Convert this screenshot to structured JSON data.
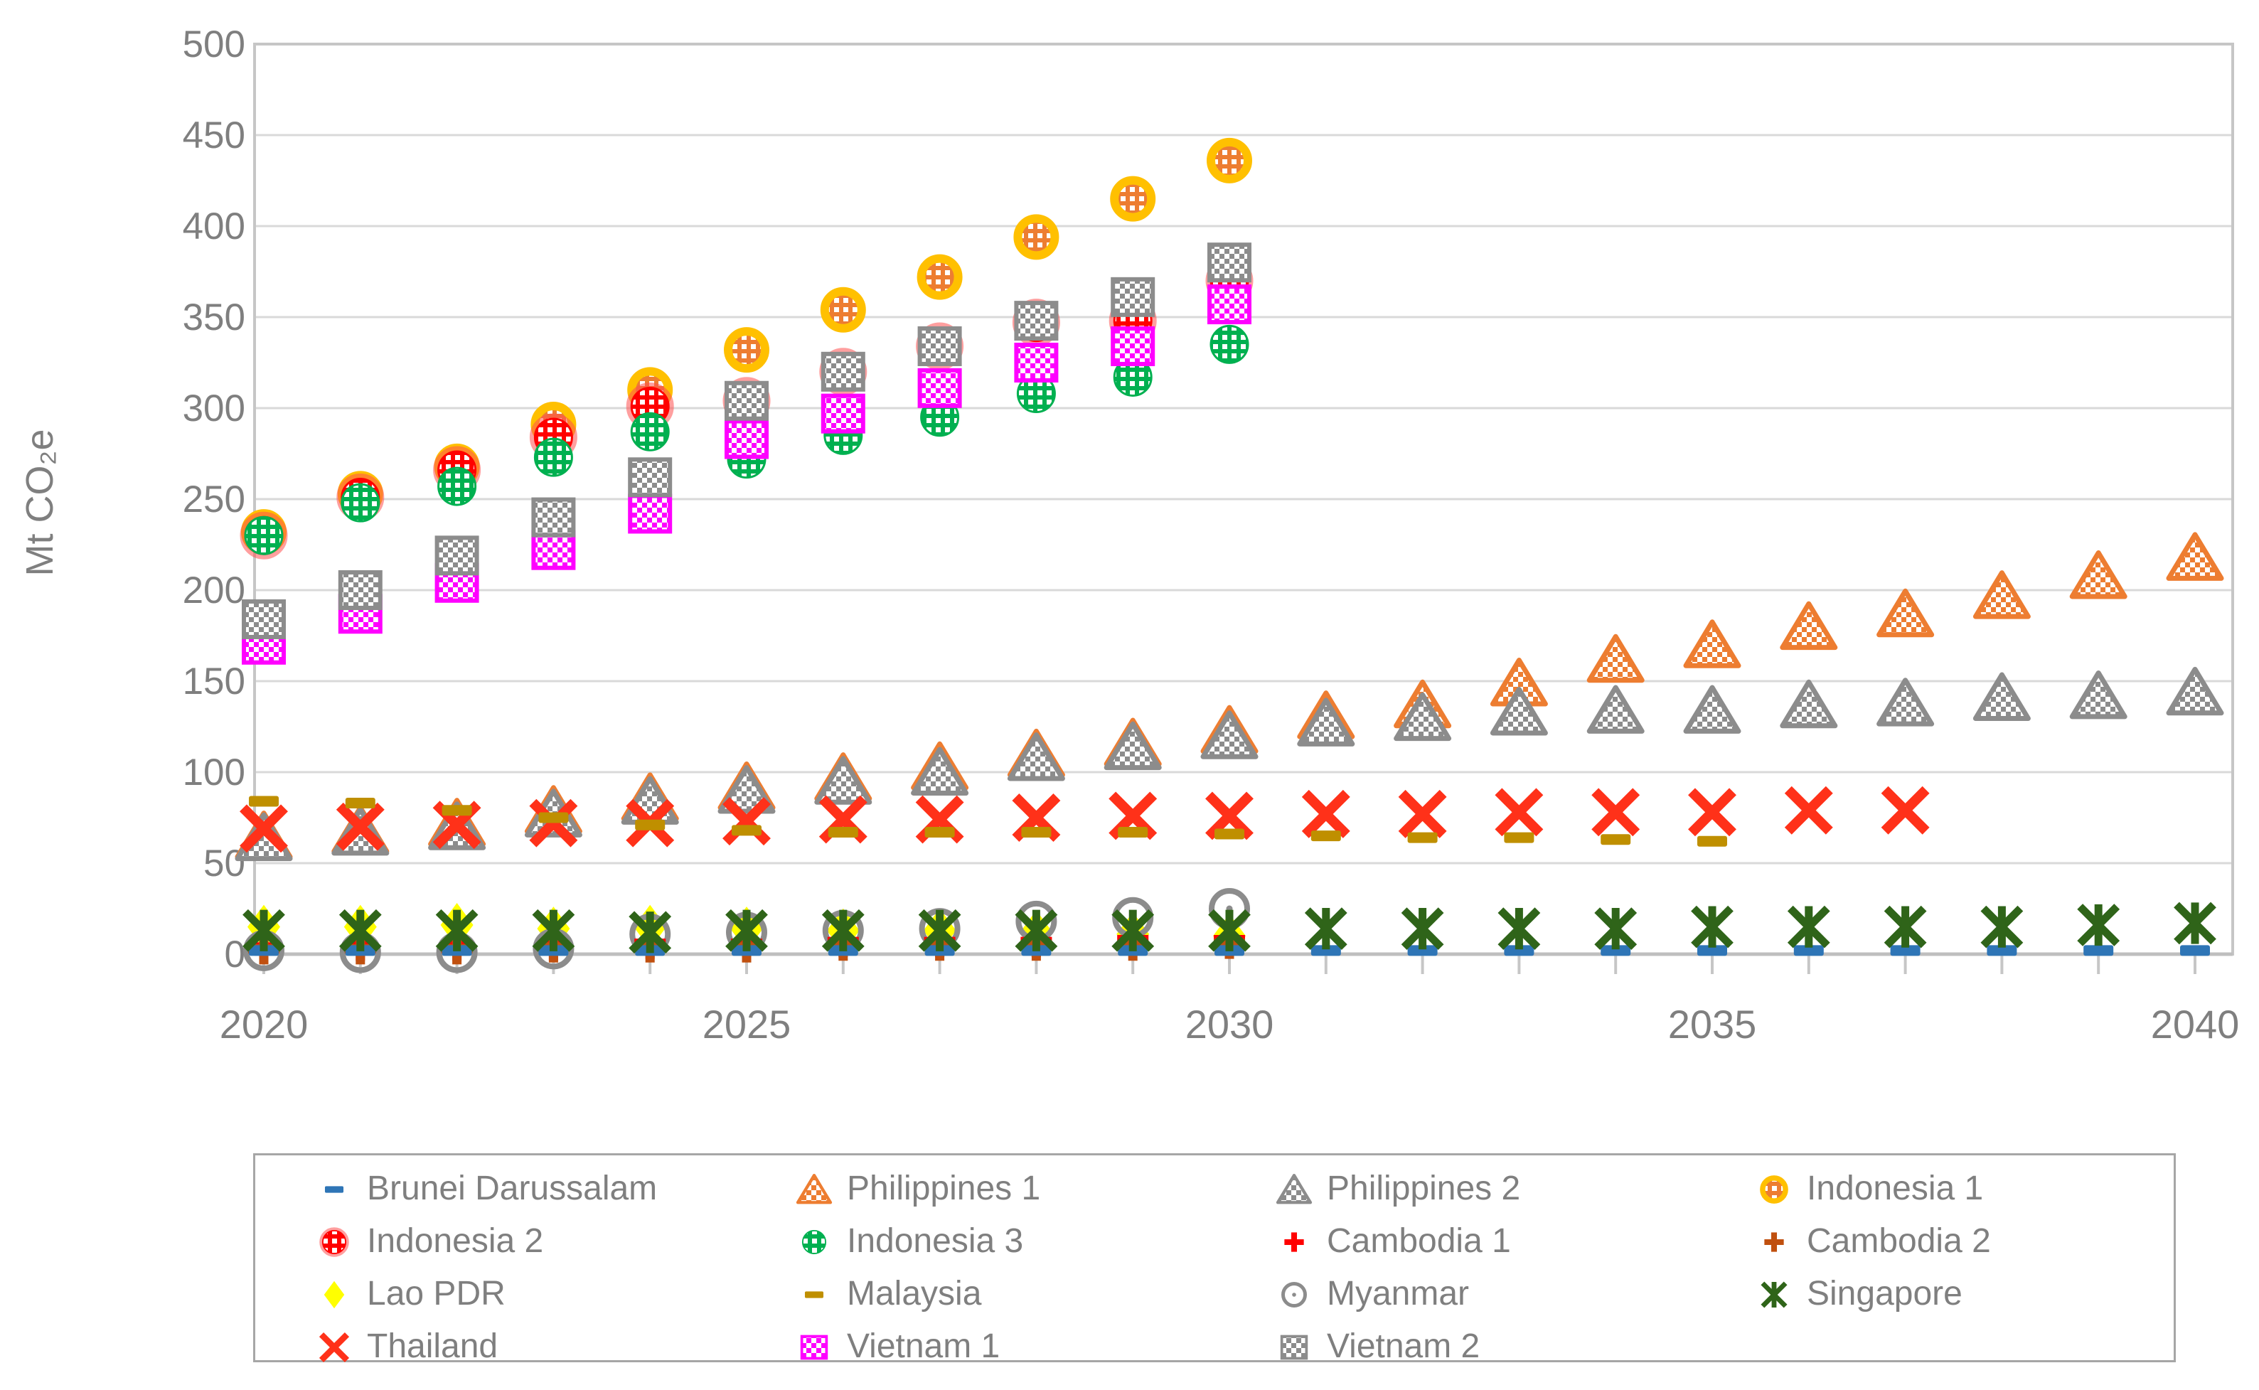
{
  "page": {
    "background": "#FFFFFF"
  },
  "chart_data": {
    "type": "scatter",
    "title": "",
    "xlabel": "",
    "ylabel": "Mt CO₂e",
    "ylim": [
      0,
      500
    ],
    "ytick_step": 50,
    "grid": "horizontal",
    "legend_position": "bottom-box",
    "x": [
      2020,
      2021,
      2022,
      2023,
      2024,
      2025,
      2026,
      2027,
      2028,
      2029,
      2030,
      2031,
      2032,
      2033,
      2034,
      2035,
      2036,
      2037,
      2038,
      2039,
      2040
    ],
    "xtick_labels": [
      "2020",
      "2025",
      "2030",
      "2035",
      "2040"
    ],
    "series": [
      {
        "name": "Brunei Darussalam",
        "marker": "dash",
        "color": "#2E75B6",
        "values": [
          2,
          2,
          2,
          2,
          2,
          2,
          2,
          2,
          2,
          2,
          2,
          2,
          2,
          2,
          2,
          2,
          2,
          2,
          2,
          2,
          2
        ]
      },
      {
        "name": "Philippines 1",
        "marker": "triangle",
        "color": "#ED7D31",
        "pattern": "orange",
        "values": [
          65,
          68,
          72,
          79,
          86,
          92,
          97,
          103,
          110,
          116,
          123,
          131,
          137,
          149,
          162,
          170,
          180,
          187,
          197,
          208,
          218
        ]
      },
      {
        "name": "Philippines 2",
        "marker": "triangle",
        "color": "#8C8C8C",
        "pattern": "gray",
        "values": [
          64,
          67,
          70,
          77,
          84,
          90,
          95,
          100,
          108,
          114,
          120,
          127,
          130,
          133,
          134,
          134,
          137,
          138,
          141,
          142,
          144
        ]
      },
      {
        "name": "Indonesia 1",
        "marker": "circle-dot",
        "color": "#ED7D31",
        "pattern": "orange",
        "ring": "#FFC000",
        "values": [
          232,
          253,
          268,
          291,
          310,
          332,
          354,
          372,
          394,
          415,
          436,
          null,
          null,
          null,
          null,
          null,
          null,
          null,
          null,
          null,
          null
        ]
      },
      {
        "name": "Indonesia 2",
        "marker": "circle-dot",
        "color": "#FF0000",
        "pattern": "red",
        "glow": "#FF5050",
        "values": [
          230,
          251,
          266,
          284,
          301,
          304,
          320,
          334,
          347,
          348,
          370,
          null,
          null,
          null,
          null,
          null,
          null,
          null,
          null,
          null,
          null
        ]
      },
      {
        "name": "Indonesia 3",
        "marker": "circle-dot",
        "color": "#00B050",
        "pattern": "green",
        "values": [
          230,
          248,
          257,
          273,
          287,
          272,
          285,
          295,
          308,
          317,
          335,
          null,
          null,
          null,
          null,
          null,
          null,
          null,
          null,
          null,
          null
        ]
      },
      {
        "name": "Cambodia 1",
        "marker": "plus",
        "color": "#FF0000",
        "values": [
          4,
          5,
          5,
          5,
          6,
          6,
          7,
          7,
          7,
          8,
          8,
          null,
          null,
          null,
          null,
          null,
          null,
          null,
          null,
          null,
          null
        ]
      },
      {
        "name": "Cambodia 2",
        "marker": "plus",
        "color": "#C0500F",
        "values": [
          3,
          3,
          3,
          4,
          4,
          4,
          5,
          5,
          5,
          5,
          6,
          null,
          null,
          null,
          null,
          null,
          null,
          null,
          null,
          null,
          null
        ]
      },
      {
        "name": "Lao PDR",
        "marker": "diamond",
        "color": "#FFFF00",
        "values": [
          15,
          15,
          16,
          14,
          15,
          14,
          13,
          13,
          12,
          11,
          10,
          null,
          null,
          null,
          null,
          null,
          null,
          null,
          null,
          null,
          null
        ]
      },
      {
        "name": "Malaysia",
        "marker": "dash",
        "color": "#BF8F00",
        "values": [
          84,
          83,
          79,
          75,
          71,
          68,
          67,
          67,
          67,
          67,
          66,
          65,
          64,
          64,
          63,
          62,
          null,
          null,
          null,
          null,
          null
        ]
      },
      {
        "name": "Myanmar",
        "marker": "circle-open",
        "color": "#8C8C8C",
        "values": [
          2,
          1,
          1,
          3,
          11,
          12,
          13,
          14,
          18,
          20,
          25,
          null,
          null,
          null,
          null,
          null,
          null,
          null,
          null,
          null,
          null
        ]
      },
      {
        "name": "Singapore",
        "marker": "asterisk",
        "color": "#2F6419",
        "values": [
          13,
          13,
          13,
          13,
          12,
          13,
          13,
          13,
          13,
          13,
          13,
          14,
          14,
          14,
          14,
          15,
          15,
          15,
          15,
          16,
          17
        ]
      },
      {
        "name": "Thailand",
        "marker": "x",
        "color": "#FF3119",
        "values": [
          69,
          70,
          71,
          72,
          72,
          73,
          74,
          74,
          75,
          76,
          76,
          77,
          77,
          78,
          78,
          78,
          79,
          79,
          null,
          null,
          null
        ]
      },
      {
        "name": "Vietnam 1",
        "marker": "square",
        "color": "#FF00FF",
        "pattern": "magenta",
        "values": [
          170,
          187,
          204,
          222,
          242,
          283,
          297,
          311,
          325,
          334,
          357,
          null,
          null,
          null,
          null,
          null,
          null,
          null,
          null,
          null,
          null
        ]
      },
      {
        "name": "Vietnam 2",
        "marker": "square",
        "color": "#8C8C8C",
        "pattern": "gray",
        "values": [
          184,
          200,
          219,
          240,
          262,
          304,
          320,
          334,
          348,
          361,
          380,
          null,
          null,
          null,
          null,
          null,
          null,
          null,
          null,
          null,
          null
        ]
      }
    ],
    "draw_order": [
      "Philippines 1",
      "Philippines 2",
      "Thailand",
      "Malaysia",
      "Indonesia 1",
      "Indonesia 2",
      "Indonesia 3",
      "Vietnam 1",
      "Vietnam 2",
      "Lao PDR",
      "Myanmar",
      "Cambodia 1",
      "Cambodia 2",
      "Brunei Darussalam",
      "Singapore"
    ]
  }
}
